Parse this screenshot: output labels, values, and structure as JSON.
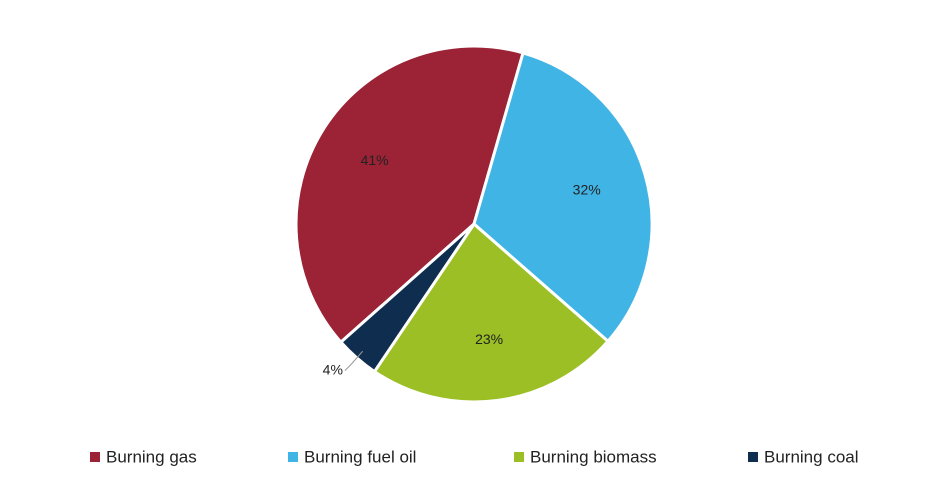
{
  "chart_data": {
    "type": "pie",
    "categories": [
      "Burning gas",
      "Burning fuel oil",
      "Burning biomass",
      "Burning coal"
    ],
    "values": [
      41,
      32,
      23,
      4
    ],
    "value_labels": [
      "41%",
      "32%",
      "23%",
      "4%"
    ],
    "colors": [
      "#9b2335",
      "#41b4e6",
      "#9bbf25",
      "#0f2d4f"
    ],
    "legend": "bottom"
  }
}
